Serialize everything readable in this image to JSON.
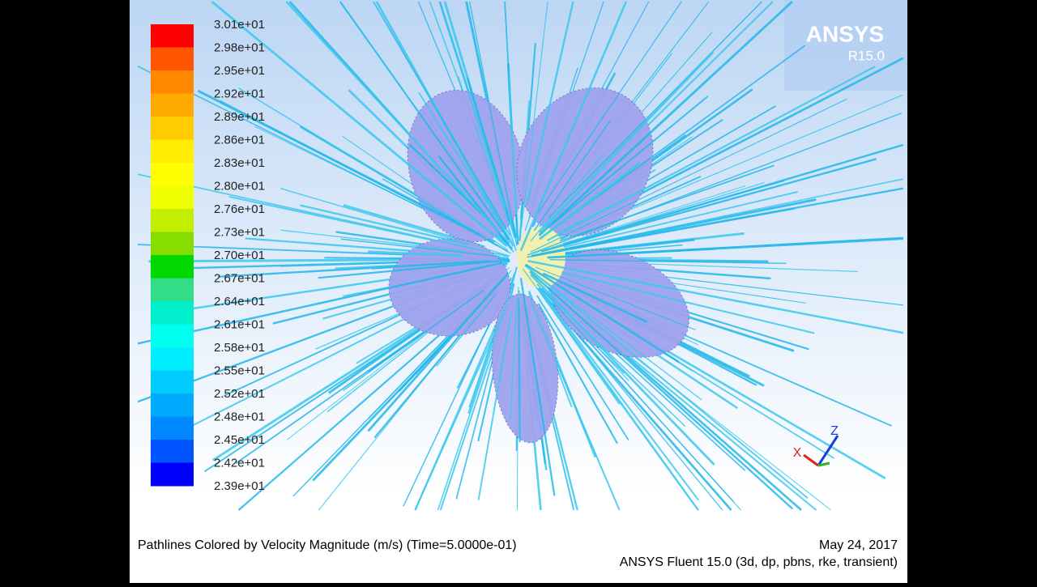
{
  "colorbar": {
    "labels": [
      "3.01e+01",
      "2.98e+01",
      "2.95e+01",
      "2.92e+01",
      "2.89e+01",
      "2.86e+01",
      "2.83e+01",
      "2.80e+01",
      "2.76e+01",
      "2.73e+01",
      "2.70e+01",
      "2.67e+01",
      "2.64e+01",
      "2.61e+01",
      "2.58e+01",
      "2.55e+01",
      "2.52e+01",
      "2.48e+01",
      "2.45e+01",
      "2.42e+01",
      "2.39e+01"
    ],
    "colors": [
      "#ff0000",
      "#ff5500",
      "#ff8800",
      "#ffaa00",
      "#ffcc00",
      "#ffee00",
      "#ffff00",
      "#f0ff00",
      "#c4ee00",
      "#88dd00",
      "#00d800",
      "#33dd88",
      "#00eecc",
      "#00ffee",
      "#00eeff",
      "#00ccff",
      "#00aaff",
      "#0088ff",
      "#0055ff",
      "#0000ff"
    ]
  },
  "logo": {
    "brand": "ANSYS",
    "version": "R15.0"
  },
  "triad": {
    "x": "X",
    "z": "Z"
  },
  "footer": {
    "caption": "Pathlines Colored by Velocity Magnitude (m/s)  (Time=5.0000e-01)",
    "date": "May 24, 2017",
    "solver": "ANSYS Fluent 15.0 (3d, dp, pbns, rke, transient)"
  }
}
